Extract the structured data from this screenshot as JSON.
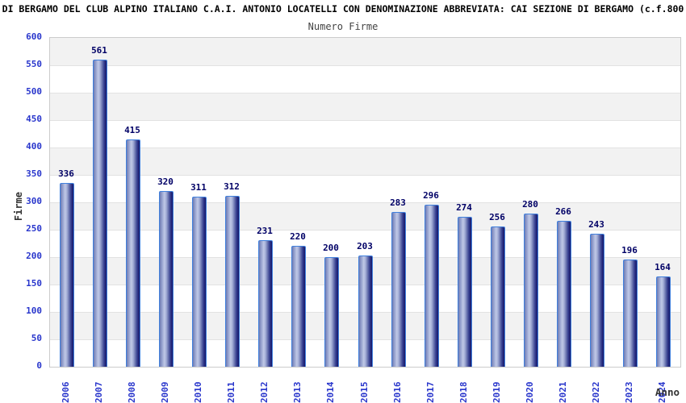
{
  "header": {
    "title": "DI BERGAMO DEL CLUB ALPINO ITALIANO C.A.I. ANTONIO LOCATELLI CON DENOMINAZIONE ABBREVIATA: CAI SEZIONE DI BERGAMO (c.f.800",
    "subtitle": "Numero Firme"
  },
  "chart_data": {
    "type": "bar",
    "title": "Numero Firme",
    "categories": [
      "2006",
      "2007",
      "2008",
      "2009",
      "2010",
      "2011",
      "2012",
      "2013",
      "2014",
      "2015",
      "2016",
      "2017",
      "2018",
      "2019",
      "2020",
      "2021",
      "2022",
      "2023",
      "2024"
    ],
    "values": [
      336,
      561,
      415,
      320,
      311,
      312,
      231,
      220,
      200,
      203,
      283,
      296,
      274,
      256,
      280,
      266,
      243,
      196,
      164
    ],
    "xlabel": "Anno",
    "ylabel": "Firme",
    "ylim": [
      0,
      600
    ],
    "ytick_step": 50,
    "yticks": [
      0,
      50,
      100,
      150,
      200,
      250,
      300,
      350,
      400,
      450,
      500,
      550,
      600
    ],
    "grid": "alternating horizontal bands, gridline each 50",
    "legend_position": "none",
    "data_labels": true,
    "x_tick_rotation_degrees": 90
  },
  "colors": {
    "title_text": "#000000",
    "subtitle_text": "#444444",
    "axis_tick_text": "#2936cc",
    "value_label_text": "#000066",
    "axis_title_text": "#333333",
    "bar_border": "#4080dd",
    "bar_light": "#c0c8e6",
    "bar_dark": "#141668",
    "band_gray": "#f2f2f2",
    "band_white": "#ffffff",
    "gridline": "#e2e2e2",
    "plot_border": "#cccccc",
    "background": "#ffffff"
  }
}
